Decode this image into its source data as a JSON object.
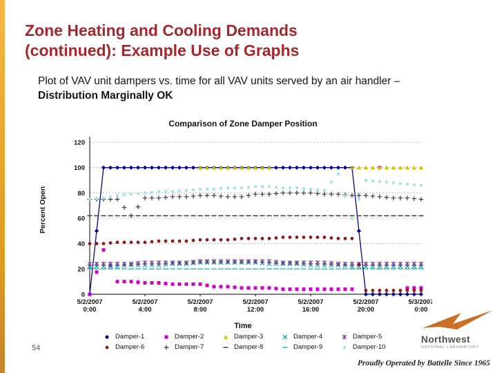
{
  "slide": {
    "title_line1": "Zone Heating and Cooling Demands",
    "title_line2": "(continued):  Example Use of Graphs",
    "body_normal": "Plot of VAV unit dampers vs. time for all VAV units served by an air handler – ",
    "body_bold": "Distribution Marginally OK",
    "page_number": "54"
  },
  "logo": {
    "name": "Northwest",
    "sub": "NATIONAL LABORATORY",
    "tagline": "Proudly Operated by Battelle Since 1965"
  },
  "colors": {
    "accent_bar": "#E8A437",
    "title_text": "#A3282E",
    "logo_orange": "#C96F26"
  },
  "chart_data": {
    "type": "scatter",
    "title": "Comparison of Zone Damper Position",
    "xlabel": "Time",
    "ylabel": "Percent Open",
    "ylim": [
      0,
      120
    ],
    "yticks": [
      0,
      20,
      40,
      60,
      80,
      100,
      120
    ],
    "grid": "dotted-horizontal",
    "legend_position": "bottom",
    "x_hours": [
      0,
      1,
      2,
      3,
      4,
      5,
      6,
      7,
      8,
      9,
      10,
      11,
      12,
      13,
      14,
      15,
      16,
      17,
      18,
      19,
      20,
      21,
      22,
      23,
      24
    ],
    "xtick_hours": [
      0,
      4,
      8,
      12,
      16,
      20,
      24
    ],
    "xtick_labels": [
      "5/2/2007\n0:00",
      "5/2/2007\n4:00",
      "5/2/2007\n8:00",
      "5/2/2007\n12:00",
      "5/2/2007\n16:00",
      "5/2/2007\n20:00",
      "5/3/2007\n0:00"
    ],
    "series": [
      {
        "name": "Damper-1",
        "marker": "diamond",
        "color": "#000080",
        "line": true,
        "values": [
          0,
          100,
          100,
          100,
          100,
          100,
          100,
          100,
          100,
          100,
          100,
          100,
          100,
          100,
          100,
          100,
          100,
          100,
          100,
          100,
          0,
          0,
          0,
          0,
          0
        ]
      },
      {
        "name": "Damper-2",
        "marker": "square",
        "color": "#CC00CC",
        "values": [
          0,
          35,
          10,
          10,
          9,
          9,
          8,
          8,
          8,
          6,
          6,
          5,
          5,
          5,
          4,
          4,
          4,
          4,
          4,
          4,
          null,
          100,
          null,
          5,
          5
        ]
      },
      {
        "name": "Damper-3",
        "marker": "triangle",
        "color": "#C8C800",
        "values": [
          null,
          null,
          null,
          null,
          null,
          null,
          null,
          null,
          100,
          100,
          100,
          100,
          100,
          100,
          null,
          null,
          null,
          null,
          null,
          100,
          100,
          100,
          100,
          100,
          100
        ]
      },
      {
        "name": "Damper-4",
        "marker": "x",
        "color": "#009999",
        "values": [
          22,
          22,
          22,
          23,
          23,
          23,
          24,
          24,
          25,
          25,
          25,
          25,
          25,
          24,
          24,
          24,
          23,
          23,
          23,
          22,
          22,
          22,
          22,
          22,
          22
        ]
      },
      {
        "name": "Damper-5",
        "marker": "star",
        "color": "#7B2D8B",
        "values": [
          24,
          24,
          24,
          24,
          25,
          25,
          25,
          25,
          26,
          26,
          26,
          26,
          26,
          26,
          25,
          25,
          25,
          25,
          24,
          24,
          24,
          24,
          24,
          24,
          24
        ]
      },
      {
        "name": "Damper-6",
        "marker": "circle",
        "color": "#8B1A1A",
        "values": [
          40,
          40,
          41,
          41,
          41,
          42,
          42,
          42,
          43,
          43,
          43,
          44,
          44,
          44,
          45,
          45,
          45,
          45,
          44,
          44,
          3,
          3,
          3,
          3,
          3
        ]
      },
      {
        "name": "Damper-7",
        "marker": "plus",
        "color": "#3A3A3A",
        "values": [
          75,
          75,
          75,
          62,
          76,
          76,
          77,
          77,
          78,
          78,
          77,
          77,
          79,
          79,
          80,
          80,
          80,
          79,
          79,
          78,
          78,
          77,
          76,
          76,
          75
        ]
      },
      {
        "name": "Damper-8",
        "marker": "dash",
        "color": "#3A3A3A",
        "values": [
          62,
          62,
          62,
          62,
          62,
          62,
          62,
          62,
          62,
          62,
          62,
          62,
          62,
          62,
          62,
          62,
          62,
          62,
          62,
          62,
          62,
          62,
          62,
          62,
          62
        ]
      },
      {
        "name": "Damper-9",
        "marker": "dash",
        "color": "#00CCCC",
        "values": [
          20,
          20,
          20,
          20,
          20,
          20,
          20,
          20,
          20,
          20,
          20,
          20,
          20,
          20,
          20,
          20,
          20,
          20,
          20,
          20,
          20,
          20,
          20,
          20,
          20
        ]
      },
      {
        "name": "Damper-10",
        "marker": "square-small",
        "color": "#A8E4EE",
        "values": [
          75,
          76,
          78,
          79,
          80,
          81,
          81,
          82,
          83,
          83,
          84,
          84,
          85,
          85,
          84,
          84,
          83,
          82,
          95,
          60,
          90,
          89,
          88,
          87,
          86
        ]
      }
    ]
  }
}
